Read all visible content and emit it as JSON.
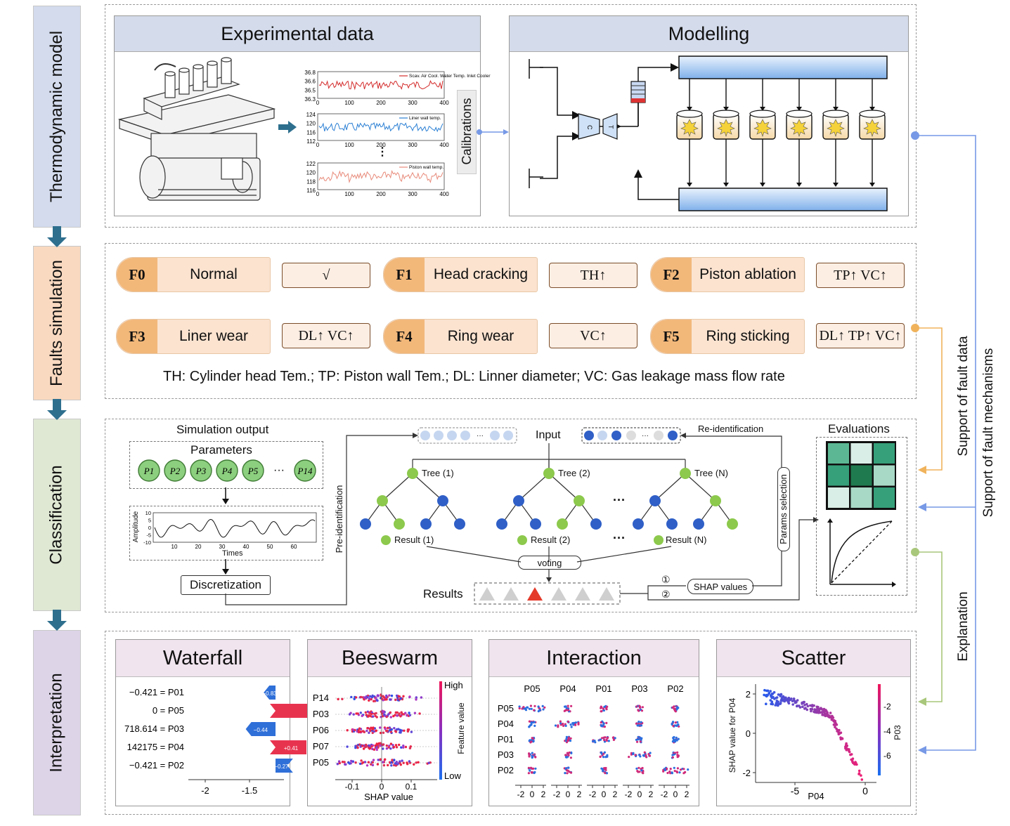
{
  "stages": [
    "Thermodynamic model",
    "Faults simulation",
    "Classification",
    "Interpretation"
  ],
  "thermo": {
    "exp_title": "Experimental data",
    "mod_title": "Modelling",
    "calibrations": "Calibrations",
    "ts_charts": [
      {
        "legend": "Scav. Air Cool. Water Temp. Inlet Cooler",
        "yticks": [
          "36.8",
          "36.6",
          "36.5",
          "36.3"
        ],
        "xticks": [
          "0",
          "100",
          "200",
          "300",
          "400"
        ]
      },
      {
        "legend": "Liner wall temp.",
        "yticks": [
          "124",
          "120",
          "116",
          "112"
        ],
        "xticks": [
          "0",
          "100",
          "200",
          "300",
          "400"
        ]
      },
      {
        "legend": "Piston wall temp.",
        "yticks": [
          "122",
          "120",
          "118",
          "116"
        ],
        "xticks": [
          "0",
          "100",
          "200",
          "300",
          "400"
        ]
      }
    ],
    "vdots": "⋮",
    "turbo_c": "C",
    "turbo_t": "T"
  },
  "faults": {
    "items": [
      {
        "code": "F0",
        "name": "Normal",
        "symbol": "√"
      },
      {
        "code": "F1",
        "name": "Head cracking",
        "symbol": "TH↑"
      },
      {
        "code": "F2",
        "name": "Piston ablation",
        "symbol": "TP↑  VC↑"
      },
      {
        "code": "F3",
        "name": "Liner wear",
        "symbol": "DL↑  VC↑"
      },
      {
        "code": "F4",
        "name": "Ring wear",
        "symbol": "VC↑"
      },
      {
        "code": "F5",
        "name": "Ring sticking",
        "symbol": "DL↑ TP↑ VC↑"
      }
    ],
    "legend": "TH: Cylinder head Tem.;  TP: Piston wall Tem.;  DL: Linner diameter;  VC: Gas leakage mass flow rate"
  },
  "classification": {
    "sim_output": "Simulation output",
    "parameters": "Parameters",
    "param_nodes": [
      "P1",
      "P2",
      "P3",
      "P4",
      "P5",
      "···",
      "P14"
    ],
    "amp_label": "Amplitude",
    "amp_yticks": [
      "10",
      "5",
      "0",
      "-5",
      "-10"
    ],
    "amp_xticks": [
      "10",
      "20",
      "30",
      "40",
      "50",
      "60"
    ],
    "times": "Times",
    "discretization": "Discretization",
    "pre_ident": "Pre-identification",
    "input": "Input",
    "re_ident": "Re-identification",
    "trees": [
      "Tree (1)",
      "Tree (2)",
      "Tree (N)"
    ],
    "results": [
      "Result (1)",
      "Result (2)",
      "Result (N)"
    ],
    "ellipsis": "···",
    "voting": "voting",
    "results_label": "Results",
    "params_selection": "Params selection",
    "shap_values": "SHAP values",
    "circle1": "①",
    "circle2": "②",
    "evaluations": "Evaluations"
  },
  "side": {
    "support_fault_data": "Support of fault data",
    "support_fault_mech": "Support of fault mechanisms",
    "explanation": "Explanation"
  },
  "interp": {
    "waterfall": {
      "title": "Waterfall",
      "rows": [
        {
          "label": "−0.421 = P01",
          "value": "−0.83",
          "color": "#2f6fd8"
        },
        {
          "label": "0 = P05",
          "value": "+0.56",
          "color": "#e8334f"
        },
        {
          "label": "718.614 = P03",
          "value": "−0.44",
          "color": "#2f6fd8"
        },
        {
          "label": "142175 = P04",
          "value": "+0.41",
          "color": "#e8334f"
        },
        {
          "label": "−0.421 = P02",
          "value": "−0.27",
          "color": "#2f6fd8"
        }
      ],
      "xticks": [
        "-2",
        "-1.5"
      ]
    },
    "beeswarm": {
      "title": "Beeswarm",
      "features": [
        "P14",
        "P03",
        "P06",
        "P07",
        "P05"
      ],
      "xticks": [
        "-0.1",
        "0",
        "0.1"
      ],
      "xlabel": "SHAP value",
      "high": "High",
      "low": "Low",
      "cbar_label": "Feature value"
    },
    "interaction": {
      "title": "Interaction",
      "cols": [
        "P05",
        "P04",
        "P01",
        "P03",
        "P02"
      ],
      "rows": [
        "P05",
        "P04",
        "P01",
        "P03",
        "P02"
      ],
      "xticks": [
        "-2",
        "0",
        "2"
      ]
    },
    "scatter": {
      "title": "Scatter",
      "ylabel": "SHAP value for P04",
      "xlabel": "P04",
      "yticks": [
        "2",
        "0",
        "-2"
      ],
      "xticks": [
        "-5",
        "0"
      ],
      "cbar_label": "P03",
      "cbar_ticks": [
        "-2",
        "-4",
        "-6"
      ]
    }
  },
  "colors": {
    "stage1": "#d3dbed",
    "stage2": "#f9d9c0",
    "stage3": "#dfe8d3",
    "stage4": "#ddd4e8",
    "arrow_teal": "#2e6f8e",
    "blue_line": "#7799e6",
    "orange_line": "#f0b35c",
    "green_line": "#a9c77a"
  }
}
